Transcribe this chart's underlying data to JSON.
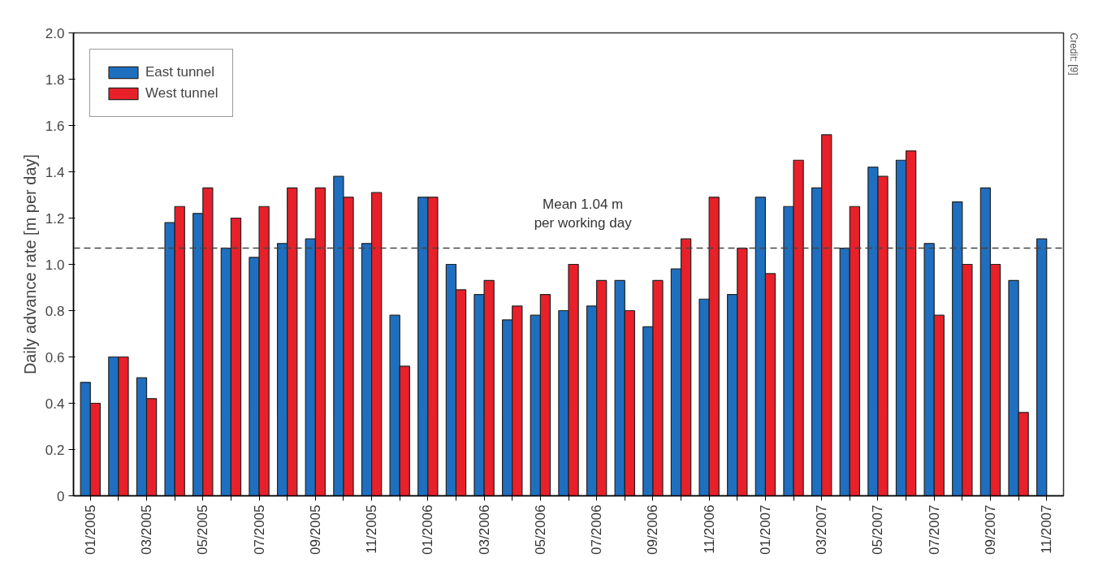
{
  "chart_data": {
    "type": "bar",
    "ylabel": "Daily advance rate [m per day]",
    "categories": [
      "01/2005",
      null,
      "03/2005",
      null,
      "05/2005",
      null,
      "07/2005",
      null,
      "09/2005",
      null,
      "11/2005",
      null,
      "01/2006",
      null,
      "03/2006",
      null,
      "05/2006",
      null,
      "07/2006",
      null,
      "09/2006",
      null,
      "11/2006",
      null,
      "01/2007",
      null,
      "03/2007",
      null,
      "05/2007",
      null,
      "07/2007",
      null,
      "09/2007",
      null,
      "11/2007"
    ],
    "series": [
      {
        "name": "East tunnel",
        "color": "#1f6fc0",
        "values": [
          0.49,
          0.6,
          0.51,
          1.18,
          1.22,
          1.07,
          1.03,
          1.09,
          1.11,
          1.38,
          1.09,
          0.78,
          1.29,
          1.0,
          0.87,
          0.76,
          0.78,
          0.8,
          0.82,
          0.93,
          0.73,
          0.98,
          0.85,
          0.87,
          1.29,
          1.25,
          1.33,
          1.07,
          1.42,
          1.45,
          1.09,
          1.27,
          1.33,
          0.93,
          1.11
        ]
      },
      {
        "name": "West tunnel",
        "color": "#e8202a",
        "values": [
          0.4,
          0.6,
          0.42,
          1.25,
          1.33,
          1.2,
          1.25,
          1.33,
          1.33,
          1.29,
          1.31,
          0.56,
          1.29,
          0.89,
          0.93,
          0.82,
          0.87,
          1.0,
          0.93,
          0.8,
          0.93,
          1.11,
          1.29,
          1.07,
          0.96,
          1.45,
          1.56,
          1.25,
          1.38,
          1.49,
          0.78,
          1.0,
          1.0,
          0.36,
          null
        ]
      }
    ],
    "ylim": [
      0,
      2.0
    ],
    "yticks": [
      0,
      0.2,
      0.4,
      0.6,
      0.8,
      {
        "value": 1,
        "label": "1.0"
      },
      1.2,
      1.4,
      1.6,
      1.8,
      {
        "value": 2,
        "label": "2.0"
      }
    ],
    "ref_lines": [
      {
        "axis": "y",
        "value": 1.07,
        "label": "Mean 1.04 m\nper working day",
        "color": "#444444",
        "line_style": "dashed"
      }
    ],
    "annotations": [
      "Credit: [9]"
    ],
    "legend": "top left",
    "grid": false
  }
}
